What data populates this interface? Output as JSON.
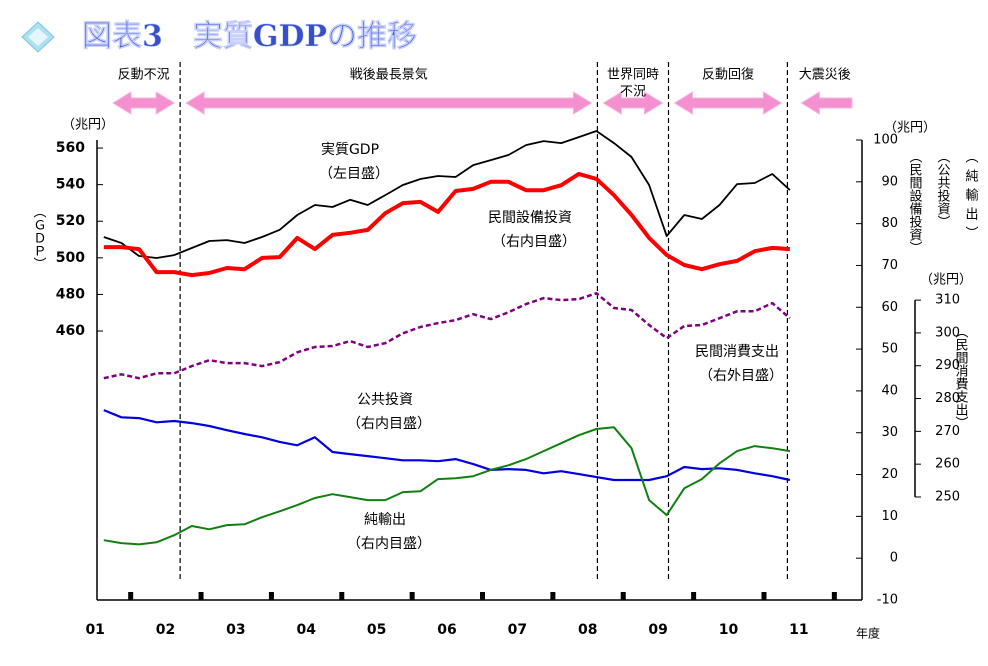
{
  "chart_data": {
    "type": "line",
    "title": "図表3　実質GDPの推移",
    "x_unit": "年度",
    "y_unit": "（兆円）",
    "y_label": "（ＧＤＰ）",
    "y2_unit": "（兆円）",
    "y2_labels": [
      "（民間設備投資）",
      "（公共投資）",
      "（純輸出）"
    ],
    "y3_unit": "（兆円）",
    "y3_label": "（民間消費支出）",
    "xlim": [
      2001,
      2011.9
    ],
    "xticks": [
      {
        "value": 2001.5,
        "label": "01"
      },
      {
        "value": 2002.5,
        "label": "02"
      },
      {
        "value": 2003.5,
        "label": "03"
      },
      {
        "value": 2004.5,
        "label": "04"
      },
      {
        "value": 2005.5,
        "label": "05"
      },
      {
        "value": 2006.5,
        "label": "06"
      },
      {
        "value": 2007.5,
        "label": "07"
      },
      {
        "value": 2008.5,
        "label": "08"
      },
      {
        "value": 2009.5,
        "label": "09"
      },
      {
        "value": 2010.5,
        "label": "10"
      },
      {
        "value": 2011.5,
        "label": "11"
      }
    ],
    "ylim": [
      313,
      564.4
    ],
    "yticks": [
      460,
      480,
      500,
      520,
      540,
      560
    ],
    "y2lim": [
      -10,
      100
    ],
    "y2ticks": [
      -10,
      0,
      10,
      20,
      30,
      40,
      50,
      60,
      70,
      80,
      90,
      100
    ],
    "y3lim": [
      218.6,
      358.8
    ],
    "y3ticks": [
      250,
      260,
      270,
      280,
      290,
      300,
      310
    ],
    "breaks": [
      2002.21,
      2008.14,
      2009.15,
      2010.84
    ],
    "periods": [
      {
        "label": [
          "反動不況"
        ]
      },
      {
        "label": [
          "戦後最長景気"
        ]
      },
      {
        "label": [
          "世界同時",
          "不況"
        ]
      },
      {
        "label": [
          "反動回復"
        ]
      },
      {
        "label": [
          "大震災後"
        ]
      }
    ],
    "x": [
      2001.125,
      2001.375,
      2001.625,
      2001.875,
      2002.125,
      2002.375,
      2002.625,
      2002.875,
      2003.125,
      2003.375,
      2003.625,
      2003.875,
      2004.125,
      2004.375,
      2004.625,
      2004.875,
      2005.125,
      2005.375,
      2005.625,
      2005.875,
      2006.125,
      2006.375,
      2006.625,
      2006.875,
      2007.125,
      2007.375,
      2007.625,
      2007.875,
      2008.125,
      2008.375,
      2008.625,
      2008.875,
      2009.125,
      2009.375,
      2009.625,
      2009.875,
      2010.125,
      2010.375,
      2010.625,
      2010.875
    ],
    "series": [
      {
        "name": "実質GDP",
        "note": "（左目盛）",
        "axis": "y",
        "color": "#000000",
        "line_width": 1.8,
        "dashed": false,
        "values": [
          511.4,
          508.1,
          501.0,
          499.9,
          501.5,
          505.4,
          509.2,
          509.7,
          508.1,
          511.4,
          515.3,
          523.4,
          528.9,
          527.8,
          531.7,
          528.9,
          534.3,
          539.8,
          543.1,
          544.7,
          544.2,
          550.7,
          553.4,
          556.2,
          561.6,
          563.8,
          562.7,
          566.0,
          569.3,
          562.7,
          555.1,
          539.8,
          511.9,
          523.4,
          521.2,
          528.9,
          540.3,
          540.9,
          545.8,
          537.0
        ]
      },
      {
        "name": "民間設備投資",
        "note": "（右内目盛）",
        "axis": "y2",
        "color": "#ff0000",
        "line_width": 4,
        "dashed": false,
        "values": [
          74.4,
          74.4,
          73.9,
          68.4,
          68.4,
          67.7,
          68.2,
          69.4,
          69.1,
          71.8,
          72.0,
          76.6,
          73.9,
          77.3,
          77.8,
          78.5,
          82.5,
          84.9,
          85.2,
          82.8,
          87.8,
          88.3,
          90.0,
          90.0,
          88.0,
          88.0,
          89.2,
          91.9,
          90.7,
          86.8,
          82.1,
          76.6,
          72.5,
          70.1,
          69.1,
          70.3,
          71.1,
          73.4,
          74.2,
          73.9
        ]
      },
      {
        "name": "民間消費支出",
        "note": "（右外目盛）",
        "axis": "y3",
        "color": "#800080",
        "line_width": 2.5,
        "dashed": true,
        "values": [
          286.2,
          287.4,
          286.2,
          287.7,
          287.7,
          289.9,
          291.7,
          290.8,
          290.8,
          289.9,
          291.1,
          294.1,
          295.7,
          296.0,
          297.5,
          295.7,
          296.9,
          299.9,
          301.8,
          303.0,
          303.9,
          305.7,
          304.2,
          306.3,
          308.8,
          310.6,
          310.0,
          310.3,
          312.1,
          307.6,
          307.0,
          302.4,
          298.4,
          302.1,
          302.4,
          304.5,
          306.6,
          306.6,
          309.1,
          304.5
        ]
      },
      {
        "name": "公共投資",
        "note": "（右内目盛）",
        "axis": "y2",
        "color": "#0000e0",
        "line_width": 2.2,
        "dashed": false,
        "values": [
          35.4,
          33.7,
          33.5,
          32.5,
          32.8,
          32.3,
          31.6,
          30.6,
          29.7,
          28.9,
          27.8,
          27.0,
          28.9,
          25.4,
          24.9,
          24.4,
          23.9,
          23.4,
          23.4,
          23.2,
          23.7,
          22.5,
          21.1,
          21.3,
          21.1,
          20.3,
          20.8,
          20.1,
          19.4,
          18.7,
          18.7,
          18.7,
          19.6,
          21.8,
          21.3,
          21.5,
          21.1,
          20.3,
          19.6,
          18.7
        ]
      },
      {
        "name": "純輸出",
        "note": "（右内目盛）",
        "axis": "y2",
        "color": "#108010",
        "line_width": 2,
        "dashed": false,
        "values": [
          4.3,
          3.6,
          3.3,
          3.8,
          5.5,
          7.7,
          6.9,
          7.9,
          8.1,
          9.8,
          11.2,
          12.7,
          14.4,
          15.3,
          14.6,
          13.9,
          13.9,
          15.8,
          16.0,
          18.9,
          19.1,
          19.6,
          21.1,
          22.2,
          23.7,
          25.6,
          27.5,
          29.4,
          30.9,
          31.3,
          26.3,
          13.9,
          10.3,
          16.7,
          18.9,
          22.7,
          25.6,
          26.8,
          26.3,
          25.6
        ]
      }
    ]
  }
}
